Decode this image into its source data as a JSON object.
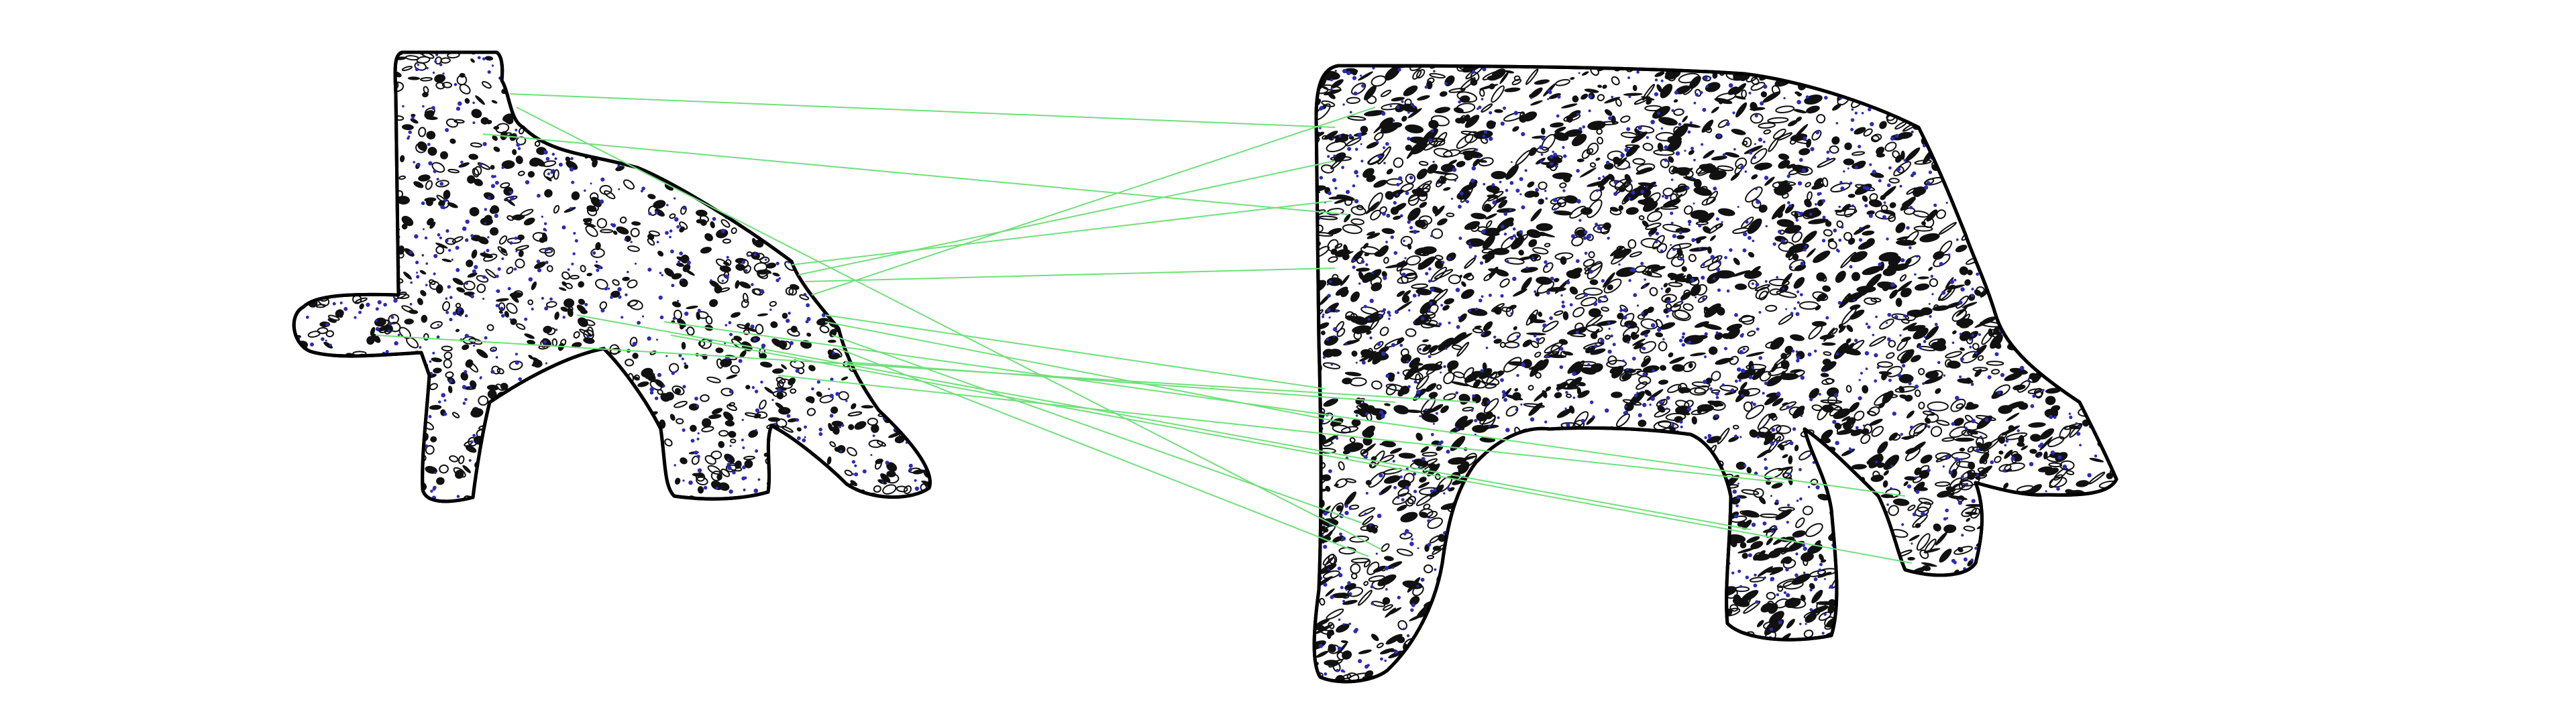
{
  "figure": {
    "background": "#ffffff",
    "outline_color": "#000000",
    "texture_color": "#111111",
    "keypoint_color": "#2b2bb8",
    "match_color": "#6fe07a",
    "left_shape": {
      "name": "animal-silhouette-small"
    },
    "right_shape": {
      "name": "animal-silhouette-large"
    },
    "match_count": 17
  }
}
